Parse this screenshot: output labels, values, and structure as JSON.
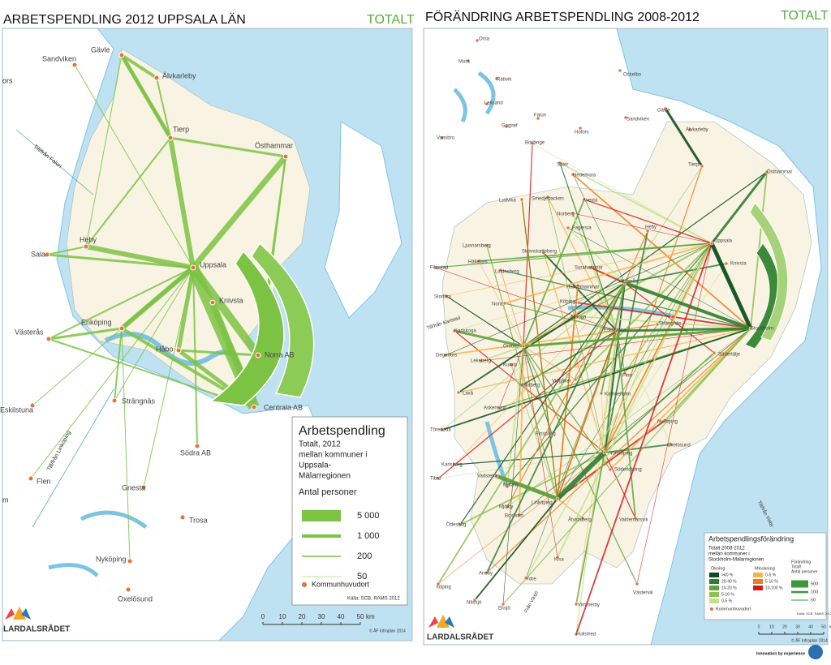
{
  "left": {
    "title": "ARBETSPENDLING 2012 UPPSALA LÄN",
    "tag": "TOTALT",
    "places": [
      "Gävle",
      "Sandviken",
      "Älvkarleby",
      "Tierp",
      "Östhammar",
      "Heby",
      "Sala",
      "Uppsala",
      "Knivsta",
      "Enköping",
      "Västerås",
      "Håbo",
      "Norra AB",
      "Eskilstuna",
      "Strängnäs",
      "Centrala AB",
      "Södra AB",
      "Flen",
      "Gnesta",
      "Trosa",
      "Nyköping",
      "Oxelösund"
    ],
    "partial_labels": [
      "ors",
      "m"
    ],
    "notes": [
      "Till/från Falun",
      "Till/från Linköping"
    ],
    "legend": {
      "title": "Arbetspendling",
      "lines": [
        "Totalt, 2012",
        "mellan kommuner i",
        "Uppsala-",
        "Mälarregionen"
      ],
      "unit": "Antal personer",
      "sizes": [
        "5 000",
        "1 000",
        "200",
        "50"
      ],
      "municipal": "Kommunhuvudort",
      "source": "Källa: SCB, RAMS 2012"
    },
    "scale": [
      0,
      10,
      20,
      30,
      40,
      50
    ],
    "scale_unit": "km",
    "credit": "© ÅF Infraplan 2014",
    "logo": "LARDALSRÅDET"
  },
  "right": {
    "title": "FÖRÄNDRING ARBETSPENDLING 2008-2012",
    "tag": "TOTALT",
    "places": [
      "Orsa",
      "Mora",
      "Rättvik",
      "Leksand",
      "Ockelbo",
      "Gagnef",
      "Falun",
      "Hofors",
      "Sandviken",
      "Gävle",
      "Älvkarleby",
      "Vansbro",
      "Borlänge",
      "Säter",
      "Hedemora",
      "Tierp",
      "Östhammar",
      "Ludvika",
      "Smedjebacken",
      "Avesta",
      "Norberg",
      "Fagersta",
      "Heby",
      "Uppsala",
      "Ljusnarsberg",
      "Skinnskatteberg",
      "Hällefors",
      "Filipstad",
      "Surahammar",
      "Knivsta",
      "Lindesberg",
      "Hallstahammar",
      "Västerås",
      "Storfors",
      "Nora",
      "Köping",
      "Karlskoga",
      "Arboga",
      "Eskilstuna",
      "Strängnäs",
      "Stockholm",
      "Degerfors",
      "Örebro",
      "Södertälje",
      "Lekeberg",
      "Kumla",
      "Hallsberg",
      "Vingåker",
      "Flen",
      "Laxå",
      "Katrineholm",
      "Askersund",
      "Nyköping",
      "Oxelösund",
      "Finspång",
      "Norrköping",
      "Töreboda",
      "Karlsborg",
      "Söderköping",
      "Vadstena",
      "Tibro",
      "Motala",
      "Linköping",
      "Mjölby",
      "Ödeshög",
      "Boxholm",
      "Åtvidaberg",
      "Valdemarsvik",
      "Kisa",
      "Ydre",
      "Aneby",
      "köping",
      "Eksjö",
      "Nässjö",
      "Vimmerby",
      "Västervik",
      "Hultsfred"
    ],
    "notes": [
      "Till/från Karlstad",
      "Till/från Visby",
      "Från Växjö"
    ],
    "legend": {
      "title": "Arbetspendlingsförändring",
      "lines": [
        "Totalt 2008-2012",
        "mellan kommuner i",
        "Stockholm-Mälarregionen"
      ],
      "increase": "Ökning",
      "decrease": "Minskning",
      "total": [
        "Förändring",
        "Totalt",
        "Antal personer"
      ],
      "increase_items": [
        ">40 %",
        "20-40 %",
        "10-20 %",
        "5-10 %",
        "0-5 %"
      ],
      "decrease_items": [
        "0-5 %",
        "5-10 %",
        "10-100 %"
      ],
      "sizes": [
        "500",
        "100",
        "50"
      ],
      "municipal": "Kommunhuvudort",
      "source": "Källa: SCB, RAMS 2012"
    },
    "scale": [
      0,
      10,
      20,
      30,
      40,
      50
    ],
    "scale_unit": "km",
    "credit": "© ÅF Infraplan 2014",
    "logo": "LARDALSRÅDET",
    "tagline": "Innovation by experience"
  }
}
